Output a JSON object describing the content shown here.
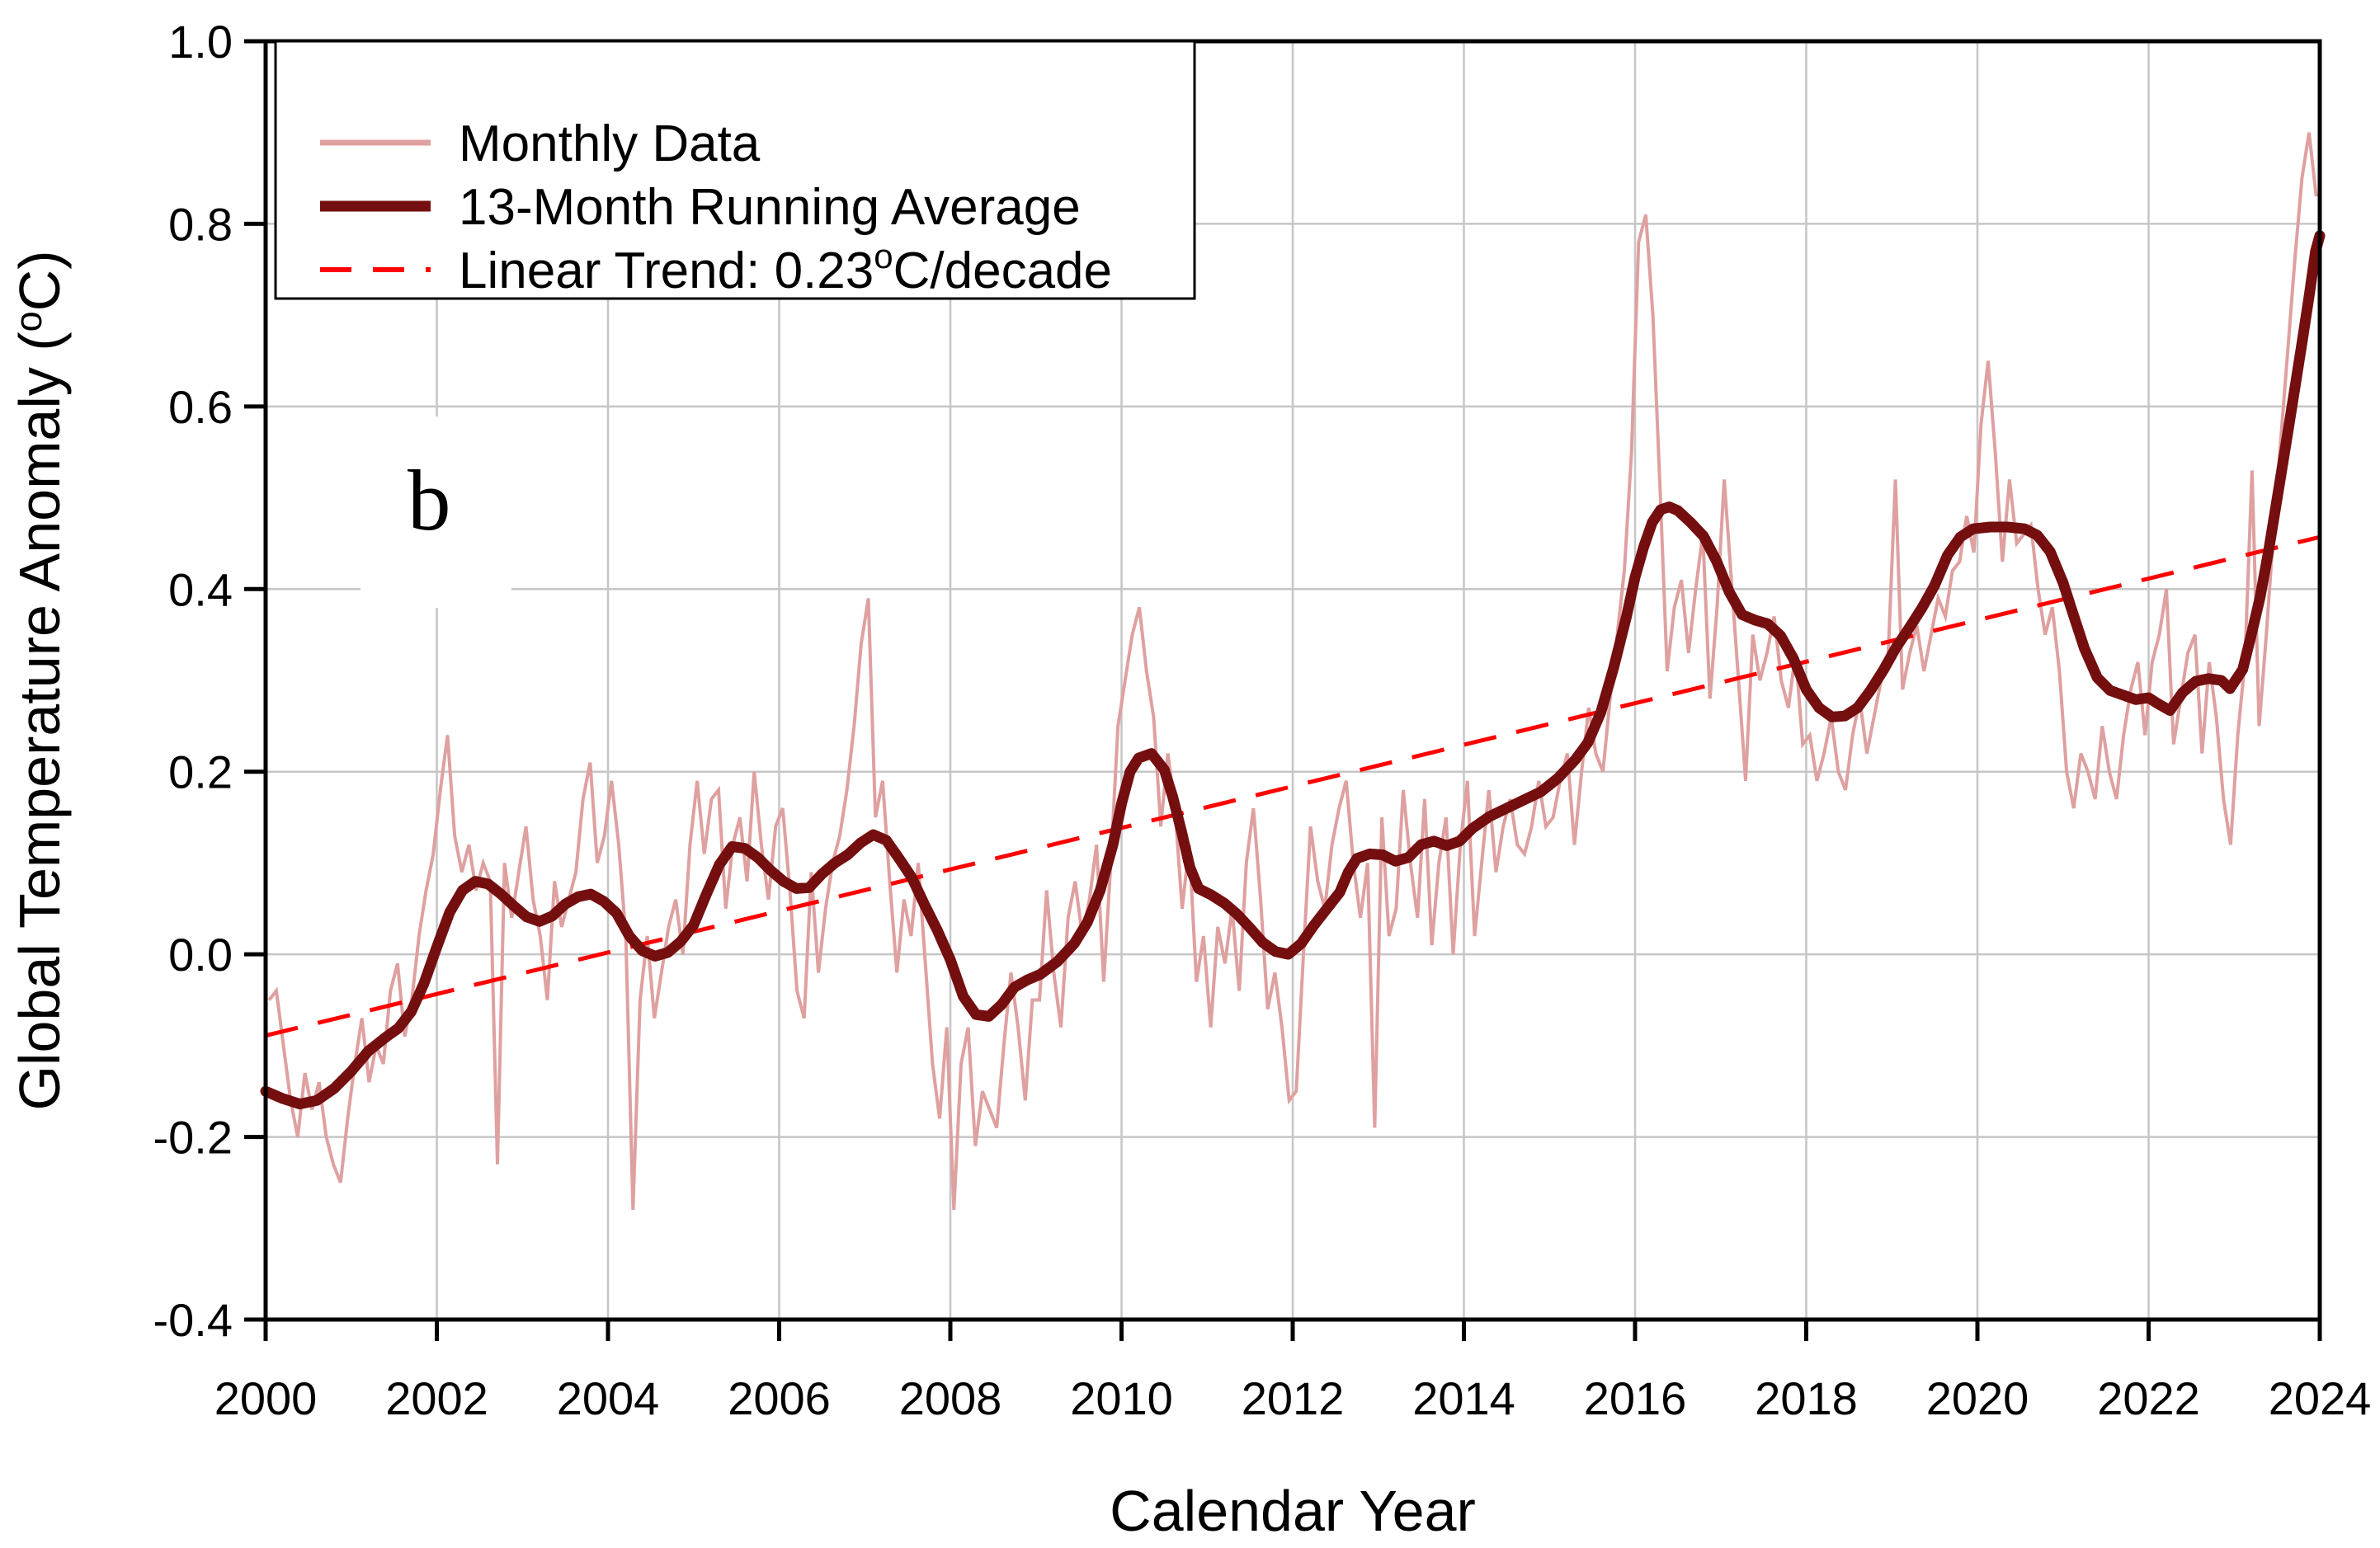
{
  "chart_data": {
    "type": "line",
    "title": "",
    "xlabel": "Calendar Year",
    "ylabel": "Global Temperature Anomaly (oC)",
    "ylabel_parts": {
      "pre": "Global Temperature Anomaly (",
      "sup": "o",
      "post": "C)"
    },
    "panel_label": "b",
    "xlim": [
      2000,
      2024
    ],
    "ylim": [
      -0.4,
      1.0
    ],
    "grid": true,
    "grid_color": "#C6C6C6",
    "legend_position": "top-left",
    "x_tick_labels": [
      "2000",
      "2002",
      "2004",
      "2006",
      "2008",
      "2010",
      "2012",
      "2014",
      "2016",
      "2018",
      "2020",
      "2022",
      "2024"
    ],
    "y_tick_labels": [
      "1.0",
      "0.8",
      "0.6",
      "0.4",
      "0.2",
      "0.0",
      "-0.2",
      "-0.4"
    ],
    "series": [
      {
        "id": "monthly",
        "name": "Monthly Data",
        "color": "#DFA0A0",
        "text_color": "#DE8F8F",
        "width": 4,
        "start_year": 2000,
        "values_per_year": 12,
        "values": [
          -0.05,
          -0.04,
          -0.1,
          -0.16,
          -0.2,
          -0.13,
          -0.17,
          -0.14,
          -0.2,
          -0.23,
          -0.25,
          -0.18,
          -0.12,
          -0.07,
          -0.14,
          -0.1,
          -0.12,
          -0.04,
          -0.01,
          -0.09,
          -0.05,
          0.02,
          0.07,
          0.11,
          0.18,
          0.24,
          0.13,
          0.09,
          0.12,
          0.07,
          0.1,
          0.08,
          -0.23,
          0.1,
          0.04,
          0.09,
          0.14,
          0.06,
          0.02,
          -0.05,
          0.08,
          0.03,
          0.06,
          0.09,
          0.17,
          0.21,
          0.1,
          0.13,
          0.19,
          0.12,
          0.02,
          -0.28,
          -0.05,
          0.02,
          -0.07,
          -0.02,
          0.03,
          0.06,
          0.0,
          0.12,
          0.19,
          0.11,
          0.17,
          0.18,
          0.05,
          0.12,
          0.15,
          0.08,
          0.2,
          0.12,
          0.06,
          0.14,
          0.16,
          0.07,
          -0.04,
          -0.07,
          0.09,
          -0.02,
          0.05,
          0.1,
          0.13,
          0.18,
          0.25,
          0.34,
          0.39,
          0.15,
          0.19,
          0.08,
          -0.02,
          0.06,
          0.02,
          0.1,
          -0.01,
          -0.12,
          -0.18,
          -0.08,
          -0.28,
          -0.12,
          -0.08,
          -0.21,
          -0.15,
          -0.17,
          -0.19,
          -0.1,
          -0.02,
          -0.08,
          -0.16,
          -0.05,
          -0.05,
          0.07,
          -0.02,
          -0.08,
          0.04,
          0.08,
          0.02,
          0.06,
          0.12,
          -0.03,
          0.1,
          0.25,
          0.3,
          0.35,
          0.38,
          0.31,
          0.26,
          0.14,
          0.22,
          0.16,
          0.05,
          0.12,
          -0.03,
          0.02,
          -0.08,
          0.03,
          -0.01,
          0.05,
          -0.04,
          0.1,
          0.16,
          0.06,
          -0.06,
          -0.02,
          -0.08,
          -0.16,
          -0.15,
          0.0,
          0.14,
          0.08,
          0.05,
          0.12,
          0.16,
          0.19,
          0.1,
          0.04,
          0.1,
          -0.19,
          0.15,
          0.02,
          0.05,
          0.18,
          0.1,
          0.04,
          0.17,
          0.01,
          0.1,
          0.15,
          0.0,
          0.12,
          0.19,
          0.02,
          0.1,
          0.18,
          0.09,
          0.14,
          0.17,
          0.12,
          0.11,
          0.14,
          0.19,
          0.14,
          0.15,
          0.19,
          0.22,
          0.12,
          0.2,
          0.27,
          0.22,
          0.2,
          0.28,
          0.35,
          0.42,
          0.55,
          0.78,
          0.81,
          0.7,
          0.51,
          0.31,
          0.38,
          0.41,
          0.33,
          0.4,
          0.46,
          0.28,
          0.38,
          0.52,
          0.41,
          0.3,
          0.19,
          0.35,
          0.3,
          0.33,
          0.37,
          0.3,
          0.27,
          0.33,
          0.23,
          0.24,
          0.19,
          0.22,
          0.26,
          0.2,
          0.18,
          0.24,
          0.28,
          0.22,
          0.26,
          0.3,
          0.33,
          0.52,
          0.29,
          0.33,
          0.36,
          0.31,
          0.35,
          0.39,
          0.37,
          0.42,
          0.43,
          0.48,
          0.44,
          0.58,
          0.65,
          0.55,
          0.43,
          0.52,
          0.45,
          0.46,
          0.47,
          0.4,
          0.35,
          0.38,
          0.31,
          0.2,
          0.16,
          0.22,
          0.2,
          0.17,
          0.25,
          0.2,
          0.17,
          0.24,
          0.29,
          0.32,
          0.24,
          0.32,
          0.35,
          0.4,
          0.23,
          0.28,
          0.33,
          0.35,
          0.22,
          0.32,
          0.26,
          0.17,
          0.12,
          0.24,
          0.32,
          0.53,
          0.25,
          0.35,
          0.46,
          0.56,
          0.66,
          0.76,
          0.85,
          0.9,
          0.83
        ]
      },
      {
        "id": "running_avg",
        "name": "13-Month Running Average",
        "color": "#740E0F",
        "text_color": "#740E0F",
        "width": 13,
        "points": [
          [
            2000.0,
            -0.15
          ],
          [
            2000.2,
            -0.158
          ],
          [
            2000.4,
            -0.164
          ],
          [
            2000.6,
            -0.16
          ],
          [
            2000.8,
            -0.147
          ],
          [
            2001.0,
            -0.128
          ],
          [
            2001.2,
            -0.106
          ],
          [
            2001.4,
            -0.091
          ],
          [
            2001.55,
            -0.081
          ],
          [
            2001.7,
            -0.063
          ],
          [
            2001.85,
            -0.032
          ],
          [
            2002.0,
            0.008
          ],
          [
            2002.15,
            0.046
          ],
          [
            2002.3,
            0.07
          ],
          [
            2002.45,
            0.08
          ],
          [
            2002.6,
            0.077
          ],
          [
            2002.75,
            0.066
          ],
          [
            2002.9,
            0.053
          ],
          [
            2003.05,
            0.041
          ],
          [
            2003.2,
            0.036
          ],
          [
            2003.35,
            0.042
          ],
          [
            2003.5,
            0.055
          ],
          [
            2003.65,
            0.063
          ],
          [
            2003.8,
            0.066
          ],
          [
            2003.95,
            0.058
          ],
          [
            2004.1,
            0.045
          ],
          [
            2004.25,
            0.02
          ],
          [
            2004.4,
            0.004
          ],
          [
            2004.55,
            -0.002
          ],
          [
            2004.7,
            0.002
          ],
          [
            2004.85,
            0.014
          ],
          [
            2005.0,
            0.032
          ],
          [
            2005.15,
            0.066
          ],
          [
            2005.3,
            0.098
          ],
          [
            2005.45,
            0.118
          ],
          [
            2005.6,
            0.116
          ],
          [
            2005.75,
            0.106
          ],
          [
            2005.9,
            0.092
          ],
          [
            2006.05,
            0.08
          ],
          [
            2006.2,
            0.072
          ],
          [
            2006.35,
            0.073
          ],
          [
            2006.5,
            0.088
          ],
          [
            2006.65,
            0.1
          ],
          [
            2006.8,
            0.109
          ],
          [
            2006.95,
            0.122
          ],
          [
            2007.1,
            0.131
          ],
          [
            2007.25,
            0.125
          ],
          [
            2007.4,
            0.105
          ],
          [
            2007.55,
            0.084
          ],
          [
            2007.7,
            0.054
          ],
          [
            2007.85,
            0.026
          ],
          [
            2008.0,
            -0.006
          ],
          [
            2008.15,
            -0.046
          ],
          [
            2008.3,
            -0.066
          ],
          [
            2008.45,
            -0.068
          ],
          [
            2008.6,
            -0.055
          ],
          [
            2008.75,
            -0.036
          ],
          [
            2008.9,
            -0.028
          ],
          [
            2009.05,
            -0.022
          ],
          [
            2009.25,
            -0.008
          ],
          [
            2009.45,
            0.012
          ],
          [
            2009.6,
            0.035
          ],
          [
            2009.75,
            0.07
          ],
          [
            2009.9,
            0.12
          ],
          [
            2010.0,
            0.165
          ],
          [
            2010.1,
            0.2
          ],
          [
            2010.2,
            0.215
          ],
          [
            2010.35,
            0.22
          ],
          [
            2010.5,
            0.202
          ],
          [
            2010.6,
            0.172
          ],
          [
            2010.7,
            0.135
          ],
          [
            2010.8,
            0.095
          ],
          [
            2010.9,
            0.072
          ],
          [
            2011.05,
            0.065
          ],
          [
            2011.2,
            0.056
          ],
          [
            2011.35,
            0.044
          ],
          [
            2011.5,
            0.029
          ],
          [
            2011.65,
            0.013
          ],
          [
            2011.8,
            0.003
          ],
          [
            2011.95,
            0.0
          ],
          [
            2012.1,
            0.012
          ],
          [
            2012.25,
            0.032
          ],
          [
            2012.4,
            0.05
          ],
          [
            2012.55,
            0.068
          ],
          [
            2012.65,
            0.09
          ],
          [
            2012.75,
            0.105
          ],
          [
            2012.9,
            0.11
          ],
          [
            2013.05,
            0.109
          ],
          [
            2013.2,
            0.102
          ],
          [
            2013.35,
            0.106
          ],
          [
            2013.5,
            0.12
          ],
          [
            2013.65,
            0.124
          ],
          [
            2013.8,
            0.119
          ],
          [
            2013.95,
            0.124
          ],
          [
            2014.1,
            0.138
          ],
          [
            2014.3,
            0.151
          ],
          [
            2014.5,
            0.16
          ],
          [
            2014.7,
            0.169
          ],
          [
            2014.9,
            0.178
          ],
          [
            2015.1,
            0.193
          ],
          [
            2015.3,
            0.213
          ],
          [
            2015.45,
            0.232
          ],
          [
            2015.6,
            0.265
          ],
          [
            2015.75,
            0.314
          ],
          [
            2015.9,
            0.37
          ],
          [
            2016.0,
            0.413
          ],
          [
            2016.1,
            0.446
          ],
          [
            2016.2,
            0.473
          ],
          [
            2016.3,
            0.487
          ],
          [
            2016.4,
            0.49
          ],
          [
            2016.5,
            0.486
          ],
          [
            2016.65,
            0.473
          ],
          [
            2016.8,
            0.458
          ],
          [
            2016.95,
            0.431
          ],
          [
            2017.1,
            0.397
          ],
          [
            2017.25,
            0.372
          ],
          [
            2017.4,
            0.366
          ],
          [
            2017.55,
            0.362
          ],
          [
            2017.7,
            0.349
          ],
          [
            2017.85,
            0.324
          ],
          [
            2018.0,
            0.29
          ],
          [
            2018.15,
            0.27
          ],
          [
            2018.3,
            0.26
          ],
          [
            2018.45,
            0.261
          ],
          [
            2018.6,
            0.27
          ],
          [
            2018.75,
            0.289
          ],
          [
            2018.9,
            0.311
          ],
          [
            2019.05,
            0.336
          ],
          [
            2019.2,
            0.357
          ],
          [
            2019.35,
            0.379
          ],
          [
            2019.5,
            0.404
          ],
          [
            2019.65,
            0.437
          ],
          [
            2019.8,
            0.457
          ],
          [
            2019.95,
            0.466
          ],
          [
            2020.15,
            0.468
          ],
          [
            2020.35,
            0.468
          ],
          [
            2020.55,
            0.466
          ],
          [
            2020.7,
            0.459
          ],
          [
            2020.85,
            0.441
          ],
          [
            2021.0,
            0.407
          ],
          [
            2021.1,
            0.378
          ],
          [
            2021.25,
            0.335
          ],
          [
            2021.4,
            0.303
          ],
          [
            2021.55,
            0.289
          ],
          [
            2021.7,
            0.284
          ],
          [
            2021.85,
            0.279
          ],
          [
            2022.0,
            0.281
          ],
          [
            2022.1,
            0.275
          ],
          [
            2022.25,
            0.267
          ],
          [
            2022.4,
            0.287
          ],
          [
            2022.55,
            0.299
          ],
          [
            2022.7,
            0.302
          ],
          [
            2022.85,
            0.3
          ],
          [
            2022.95,
            0.291
          ],
          [
            2023.1,
            0.312
          ],
          [
            2023.2,
            0.35
          ],
          [
            2023.3,
            0.39
          ],
          [
            2023.4,
            0.441
          ],
          [
            2023.5,
            0.498
          ],
          [
            2023.6,
            0.556
          ],
          [
            2023.7,
            0.615
          ],
          [
            2023.8,
            0.674
          ],
          [
            2023.88,
            0.724
          ],
          [
            2023.95,
            0.77
          ],
          [
            2024.0,
            0.787
          ]
        ]
      },
      {
        "id": "trend",
        "name": "Linear Trend: 0.23oC/decade",
        "name_parts": {
          "pre": "Linear Trend: 0.23",
          "sup": "o",
          "post": "C/decade"
        },
        "color": "#FF0000",
        "text_color": "#FF0000",
        "width": 5,
        "dash": [
          40,
          25
        ],
        "rate_c_per_decade": 0.23,
        "start": [
          2000,
          -0.089
        ],
        "end": [
          2024,
          0.457
        ]
      }
    ]
  }
}
